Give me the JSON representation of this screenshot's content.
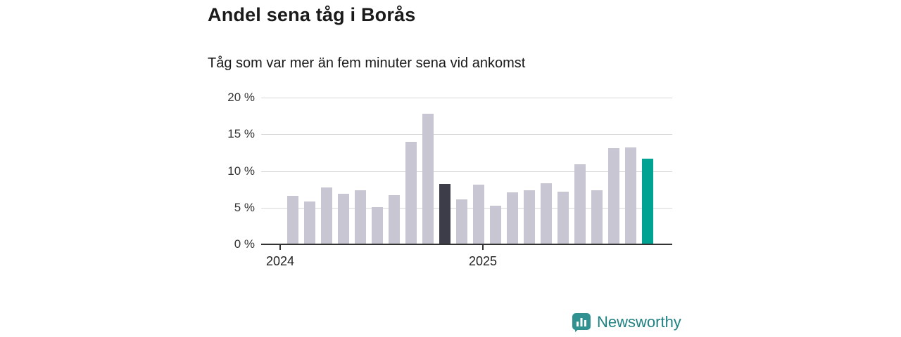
{
  "chart": {
    "title": "Andel sena tåg i Borås",
    "subtitle": "Tåg som var mer än fem minuter sena vid ankomst"
  },
  "footer": {
    "brand": "Newsworthy"
  },
  "chart_data": {
    "type": "bar",
    "title": "Andel sena tåg i Borås",
    "subtitle": "Tåg som var mer än fem minuter sena vid ankomst",
    "unit": "%",
    "categories": [
      "2024-01",
      "2024-02",
      "2024-03",
      "2024-04",
      "2024-05",
      "2024-06",
      "2024-07",
      "2024-08",
      "2024-09",
      "2024-10",
      "2024-11",
      "2024-12",
      "2025-01",
      "2025-02",
      "2025-03",
      "2025-04",
      "2025-05",
      "2025-06",
      "2025-07",
      "2025-08",
      "2025-09",
      "2025-10"
    ],
    "values": [
      6.5,
      5.7,
      7.7,
      6.8,
      7.3,
      5.0,
      6.6,
      13.9,
      17.7,
      8.1,
      6.0,
      8.0,
      5.2,
      7.0,
      7.3,
      8.2,
      7.1,
      10.8,
      7.3,
      13.0,
      13.1,
      11.6
    ],
    "ylim": [
      0,
      20
    ],
    "yticks": [
      0,
      5,
      10,
      15,
      20
    ],
    "ytick_suffix": " %",
    "xticks": [
      {
        "label": "2024",
        "index": 0
      },
      {
        "label": "2025",
        "index": 12
      }
    ],
    "grid": true,
    "legend": "none",
    "colors": {
      "default": "#c8c6d3",
      "dark": "#3d3c49",
      "accent": "#00a292"
    },
    "highlight_dark_index": 9,
    "accent_index": 21
  }
}
